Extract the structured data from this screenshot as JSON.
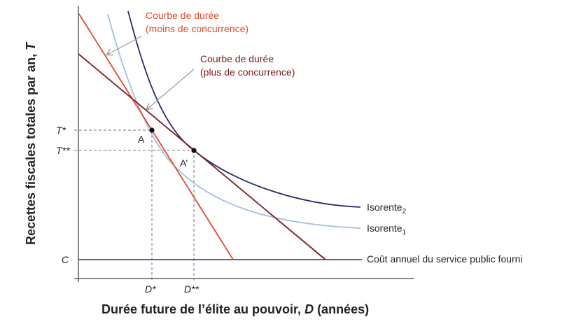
{
  "labels": {
    "curve_less_line1": "Courbe de durée",
    "curve_less_line2": "(moins de concurrence)",
    "curve_more_line1": "Courbe de durée",
    "curve_more_line2": "(plus de concurrence)",
    "isorent2_base": "Isorente",
    "isorent2_sub": "2",
    "isorent1_base": "Isorente",
    "isorent1_sub": "1",
    "cost_line": "Coût annuel du service public fourni",
    "point_a": "A",
    "point_a_prime": "A’",
    "t_star": "T*",
    "t_star2": "T**",
    "c_label": "C",
    "d_star": "D*",
    "d_star2": "D**"
  },
  "axes": {
    "x_title_prefix": "Durée future de l’élite au pouvoir, ",
    "x_title_var": "D",
    "x_title_suffix": " (années)",
    "y_title_prefix": "Recettes fiscales totales par an, ",
    "y_title_var": "T"
  },
  "colors": {
    "axis": "#444444",
    "red_line": "#e04a2a",
    "dark_red_line": "#7a1d1d",
    "isorent2": "#2b2d6e",
    "isorent1": "#a7bde0",
    "cost_line": "#3a4fa8",
    "arrow": "#999999",
    "dashed": "#777777"
  }
}
